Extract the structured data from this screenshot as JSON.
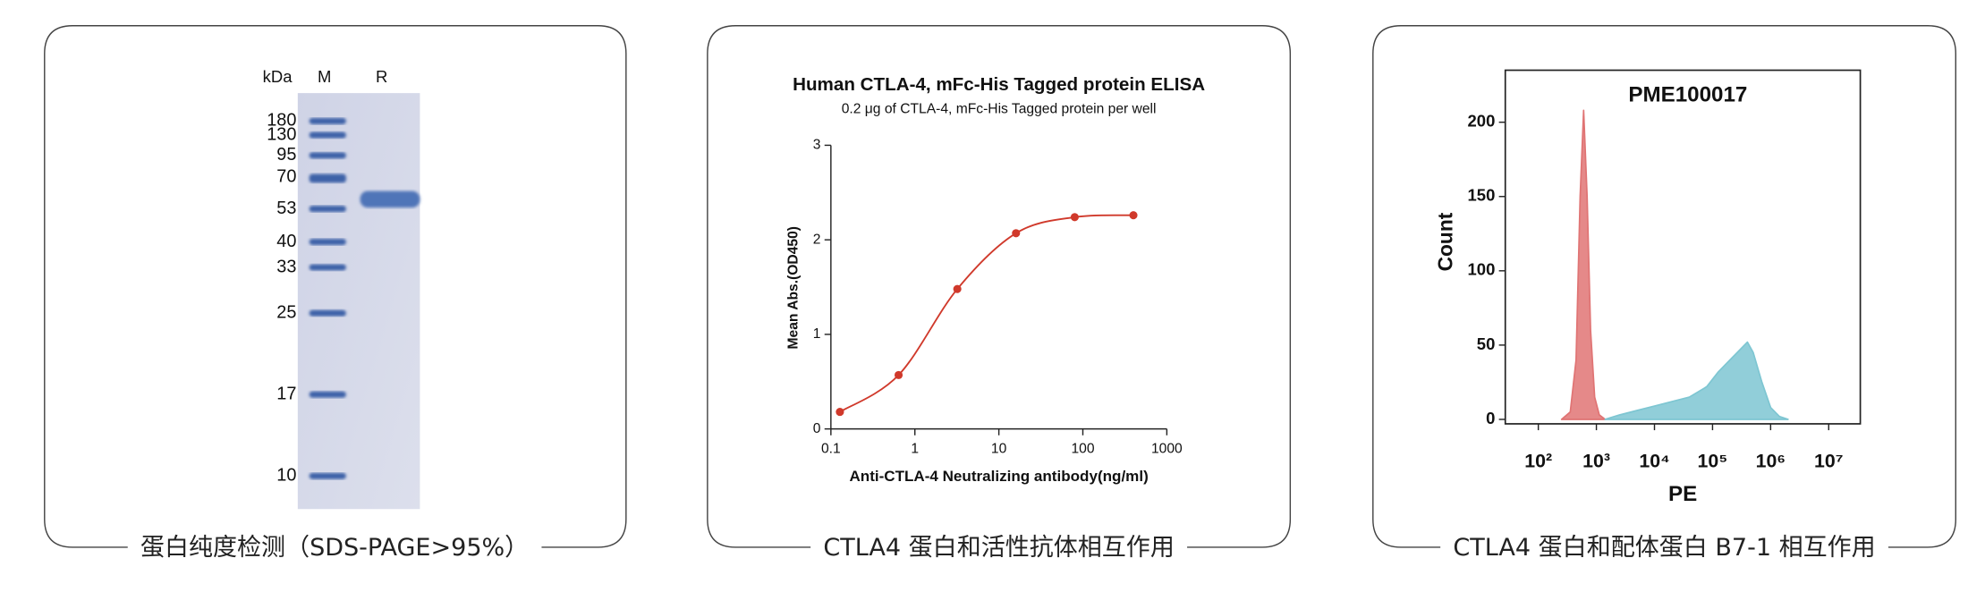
{
  "captions": [
    "蛋白纯度检测（SDS-PAGE>95%）",
    "CTLA4 蛋白和活性抗体相互作用",
    "CTLA4 蛋白和配体蛋白 B7-1 相互作用"
  ],
  "gel": {
    "lane_labels": [
      "kDa",
      "M",
      "R"
    ],
    "markers": [
      180,
      130,
      95,
      70,
      53,
      40,
      33,
      25,
      17,
      10
    ]
  },
  "chart_data": [
    {
      "type": "line",
      "title": "Human CTLA-4, mFc-His Tagged protein ELISA",
      "subtitle": "0.2 μg of CTLA-4, mFc-His Tagged protein per well",
      "x_label": "Anti-CTLA-4 Neutralizing antibody(ng/ml)",
      "y_label": "Mean Abs.(OD450)",
      "x": [
        0.128,
        0.64,
        3.2,
        16,
        80,
        400
      ],
      "series": [
        {
          "color": "#d0392b",
          "values": [
            0.18,
            0.57,
            1.48,
            2.07,
            2.24,
            2.26
          ]
        }
      ],
      "xscale": "log",
      "xlim": [
        0.1,
        1000
      ],
      "ylim": [
        0,
        3
      ],
      "xticks": [
        0.1,
        1,
        10,
        100,
        1000
      ],
      "yticks": [
        0,
        1,
        2,
        3
      ],
      "smooth": true,
      "markers": true
    },
    {
      "type": "area",
      "title": "PME100017",
      "x_label": "PE",
      "y_label": "Count",
      "series": [
        {
          "color": "#e07474",
          "x": [
            251,
            355,
            447,
            525,
            603,
            692,
            794,
            933,
            1122,
            1413
          ],
          "values": [
            0,
            5,
            40,
            150,
            208,
            150,
            60,
            15,
            3,
            0
          ]
        },
        {
          "color": "#7ec6d2",
          "x": [
            1413,
            2512,
            5012,
            10000,
            19953,
            39811,
            79433,
            125893,
            199526,
            316228,
            398107,
            501187,
            707946,
            1000000,
            1412538,
            1995262
          ],
          "values": [
            0,
            3,
            6,
            9,
            12,
            15,
            22,
            32,
            40,
            48,
            52,
            45,
            25,
            8,
            2,
            0
          ]
        }
      ],
      "xscale": "log",
      "xlim": [
        27,
        35000000
      ],
      "ylim": [
        -3,
        235
      ],
      "xticks": [
        {
          "value": 100,
          "label": "10²"
        },
        {
          "value": 1000,
          "label": "10³"
        },
        {
          "value": 10000,
          "label": "10⁴"
        },
        {
          "value": 100000,
          "label": "10⁵"
        },
        {
          "value": 1000000,
          "label": "10⁶"
        },
        {
          "value": 10000000,
          "label": "10⁷"
        }
      ],
      "yticks": [
        0,
        50,
        100,
        150,
        200
      ],
      "frame": true
    }
  ]
}
